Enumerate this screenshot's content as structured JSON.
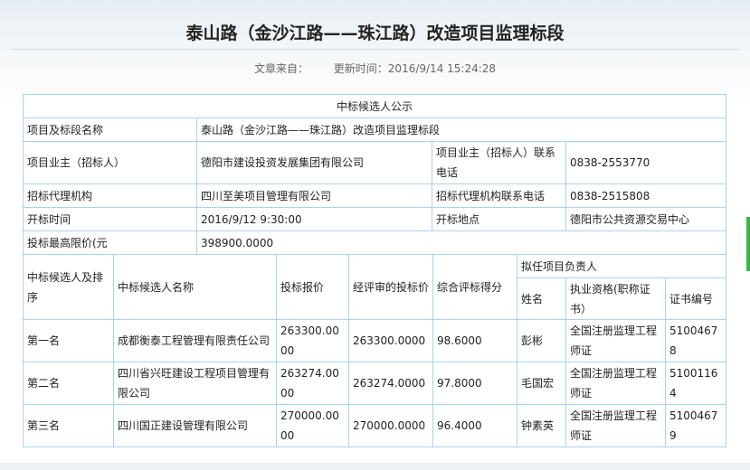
{
  "article": {
    "title": "泰山路（金沙江路——珠江路）改造项目监理标段",
    "source_label": "文章来自：",
    "updated": "更新时间：2016/9/14 15:24:28"
  },
  "info_table": {
    "heading": "中标候选人公示",
    "project_name_label": "项目及标段名称",
    "project_name": "泰山路（金沙江路——珠江路）改造项目监理标段",
    "owner_label": "项目业主（招标人）",
    "owner": "德阳市建设投资发展集团有限公司",
    "owner_phone_label": "项目业主（招标人）联系电话",
    "owner_phone": "0838-2553770",
    "agent_label": "招标代理机构",
    "agent": "四川至美项目管理有限公司",
    "agent_phone_label": "招标代理机构联系电话",
    "agent_phone": "0838-2515808",
    "open_time_label": "开标时间",
    "open_time": "2016/9/12 9:30:00",
    "open_place_label": "开标地点",
    "open_place": "德阳市公共资源交易中心",
    "max_price_label": "投标最高限价(元",
    "max_price": "398900.0000"
  },
  "candidates": {
    "headers": {
      "rank": "中标候选人及排序",
      "name": "中标候选人名称",
      "bid": "投标报价",
      "reviewed": "经评审的投标价",
      "score": "综合评标得分",
      "manager": "拟任项目负责人",
      "person": "姓名",
      "qual": "执业资格(职称证书）",
      "cert": "证书编号"
    },
    "rows": [
      {
        "rank": "第一名",
        "name": "成都衡泰工程管理有限责任公司",
        "bid": "263300.0000",
        "reviewed": "263300.0000",
        "score": "98.6000",
        "person": "彭彬",
        "qual": "全国注册监理工程师证",
        "cert": "51004678"
      },
      {
        "rank": "第二名",
        "name": "四川省兴旺建设工程项目管理有限公司",
        "bid": "263274.0000",
        "reviewed": "263274.0000",
        "score": "97.8000",
        "person": "毛国宏",
        "qual": "全国注册监理工程师证",
        "cert": "51001164"
      },
      {
        "rank": "第三名",
        "name": "四川国正建设管理有限公司",
        "bid": "270000.0000",
        "reviewed": "270000.0000",
        "score": "96.4000",
        "person": "钟素英",
        "qual": "全国注册监理工程师证",
        "cert": "51004679"
      }
    ]
  },
  "colors": {
    "border": "#a9d3f3",
    "accent_green": "#3cb44a"
  }
}
